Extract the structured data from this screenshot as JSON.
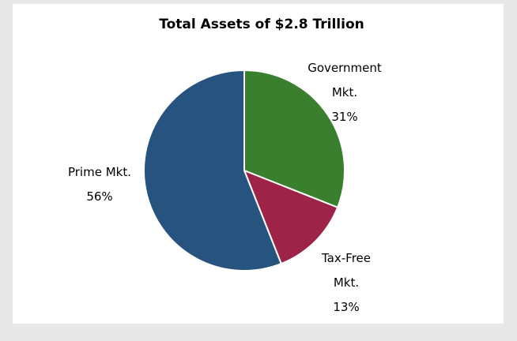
{
  "chart_data": {
    "type": "pie",
    "title": "Total Assets of $2.8 Trillion",
    "slices": [
      {
        "label_lines": [
          "Government",
          "Mkt."
        ],
        "value": 31,
        "value_label": "31%",
        "color": "#3a7f2e"
      },
      {
        "label_lines": [
          "Tax-Free",
          "Mkt."
        ],
        "value": 13,
        "value_label": "13%",
        "color": "#9e2348"
      },
      {
        "label_lines": [
          "Prime Mkt."
        ],
        "value": 56,
        "value_label": "56%",
        "color": "#27537f"
      }
    ],
    "start_angle": "12 o'clock",
    "direction": "clockwise",
    "legend": "none"
  }
}
